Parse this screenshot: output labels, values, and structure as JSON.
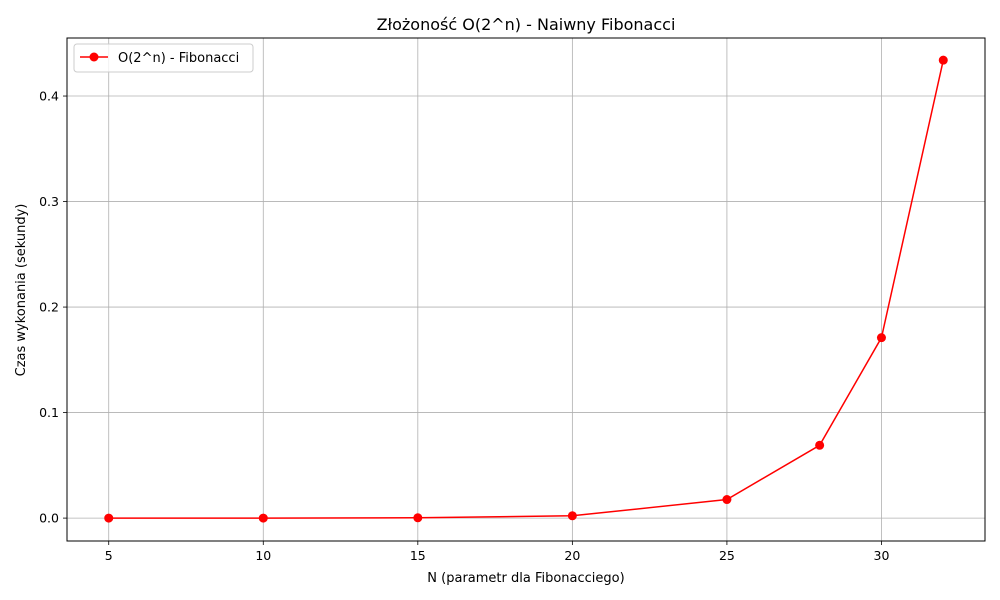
{
  "chart_data": {
    "type": "line",
    "title": "Złożoność O(2^n) - Naiwny Fibonacci",
    "xlabel": "N (parametr dla Fibonacciego)",
    "ylabel": "Czas wykonania (sekundy)",
    "xlim": [
      3.65,
      33.35
    ],
    "ylim": [
      -0.0217,
      0.455
    ],
    "xticks": [
      5,
      10,
      15,
      20,
      25,
      30
    ],
    "yticks": [
      0.0,
      0.1,
      0.2,
      0.3,
      0.4
    ],
    "ytick_labels": [
      "0.0",
      "0.1",
      "0.2",
      "0.3",
      "0.4"
    ],
    "grid": true,
    "legend_position": "top-left",
    "series": [
      {
        "name": "O(2^n) - Fibonacci",
        "color": "#ff0000",
        "marker": "circle",
        "x": [
          5,
          10,
          15,
          20,
          25,
          28,
          30,
          32
        ],
        "y": [
          0.0,
          0.0,
          0.0003,
          0.0022,
          0.0176,
          0.069,
          0.171,
          0.434
        ]
      }
    ]
  }
}
